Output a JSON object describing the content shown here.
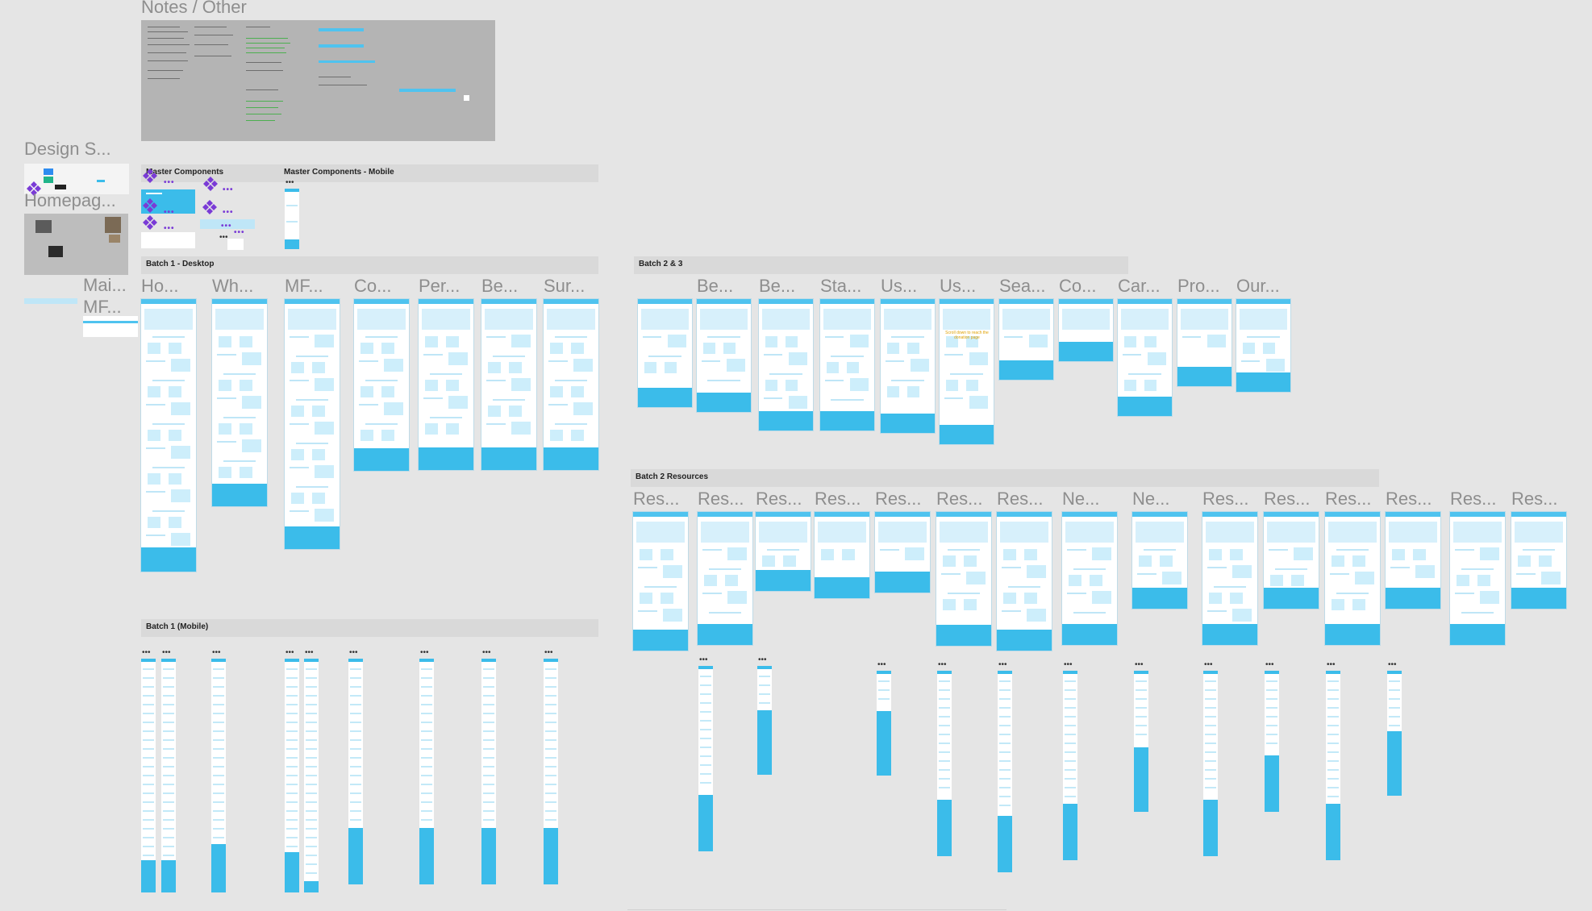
{
  "canvas": {
    "background": "#e5e5e5",
    "accent": "#3bbcea",
    "component_color": "#7a3bd6"
  },
  "titles": {
    "notes": "Notes / Other",
    "design_system": "Design S...",
    "homepage": "Homepag...",
    "mai": "Mai...",
    "mf": "MF..."
  },
  "sections": {
    "master_components": "Master Components",
    "master_components_mobile": "Master Components - Mobile",
    "batch1_desktop": "Batch 1 - Desktop",
    "batch23": "Batch 2 & 3",
    "batch2_resources": "Batch 2  Resources",
    "batch1_mobile": "Batch 1  (Mobile)"
  },
  "batch1_desktop_frames": [
    "Ho...",
    "Wh...",
    "MF...",
    "Co...",
    "Per...",
    "Be...",
    "Sur..."
  ],
  "batch23_frames": [
    "Be...",
    "Be...",
    "Sta...",
    "Us...",
    "Us...",
    "Sea...",
    "Co...",
    "Car...",
    "Pro...",
    "Our..."
  ],
  "resources_frames": [
    "Res...",
    "Res...",
    "Res...",
    "Res...",
    "Res...",
    "Res...",
    "Res...",
    "Ne...",
    "Ne...",
    "Res...",
    "Res...",
    "Res...",
    "Res...",
    "Res...",
    "Res..."
  ],
  "ellipsis": "•••",
  "purple_ellipsis": "•••",
  "banner_text": "Scroll down to reach the donation page"
}
